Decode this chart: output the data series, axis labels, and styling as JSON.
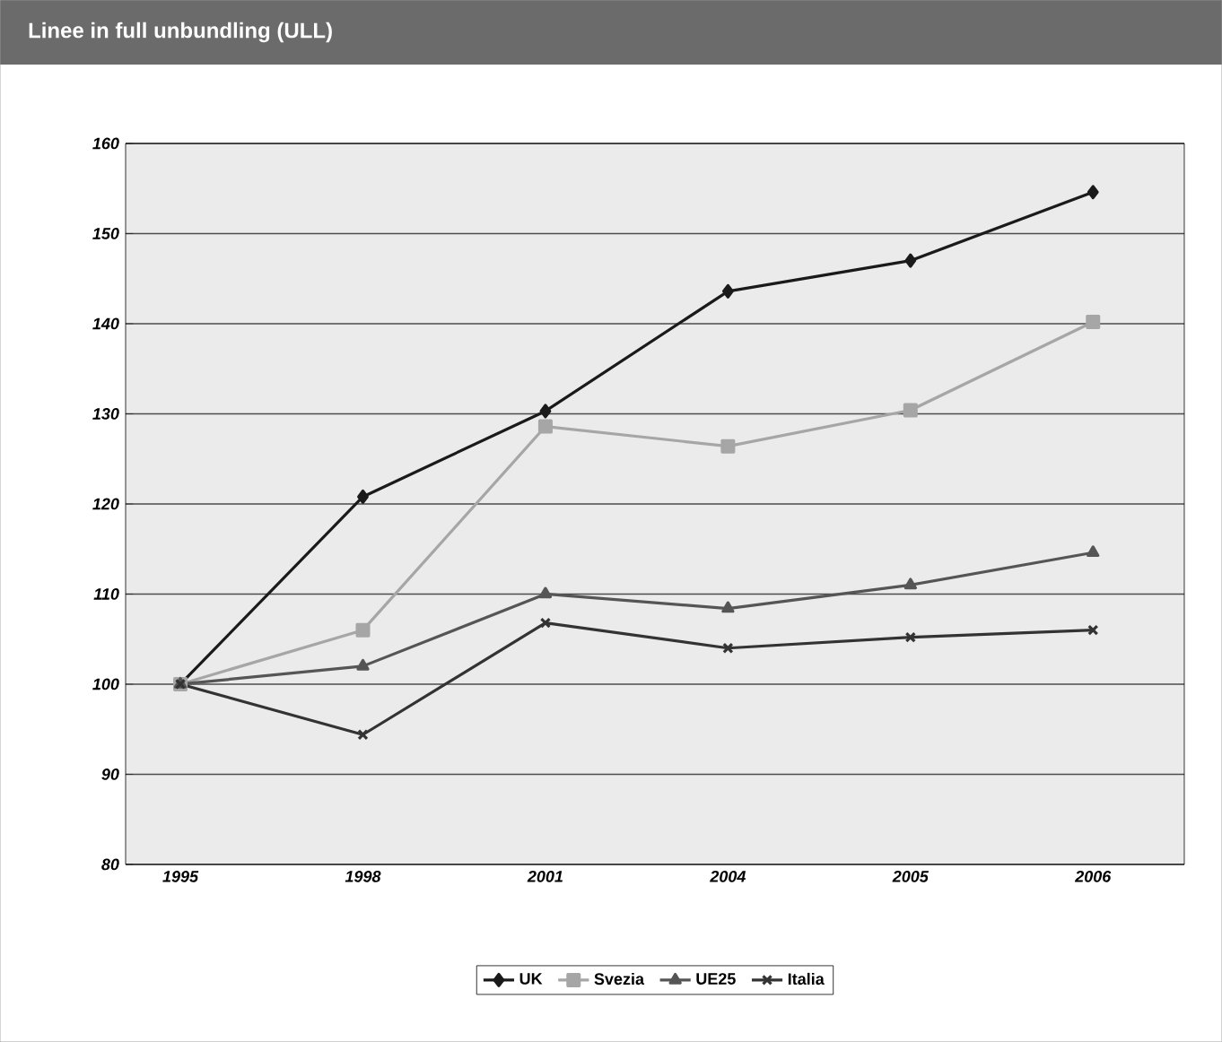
{
  "chart_data": {
    "type": "line",
    "title": "Linee in full unbundling (ULL)",
    "categories": [
      "1995",
      "1998",
      "2001",
      "2004",
      "2005",
      "2006"
    ],
    "series": [
      {
        "name": "UK",
        "color": "#1a1a1a",
        "marker": "diamond",
        "values": [
          100,
          120.8,
          130.3,
          143.6,
          147,
          154.6
        ]
      },
      {
        "name": "Svezia",
        "color": "#a6a6a6",
        "marker": "square",
        "values": [
          100,
          106,
          128.6,
          126.4,
          130.4,
          140.2
        ]
      },
      {
        "name": "UE25",
        "color": "#555555",
        "marker": "triangle",
        "values": [
          100,
          102,
          110,
          108.4,
          111,
          114.6
        ]
      },
      {
        "name": "Italia",
        "color": "#333333",
        "marker": "cross",
        "values": [
          100,
          94.4,
          106.8,
          104,
          105.2,
          106
        ]
      }
    ],
    "ylim": [
      80,
      160
    ],
    "yticks": [
      80,
      90,
      100,
      110,
      120,
      130,
      140,
      150,
      160
    ],
    "grid": "y",
    "legend": "bottom",
    "line_style": "solid"
  }
}
